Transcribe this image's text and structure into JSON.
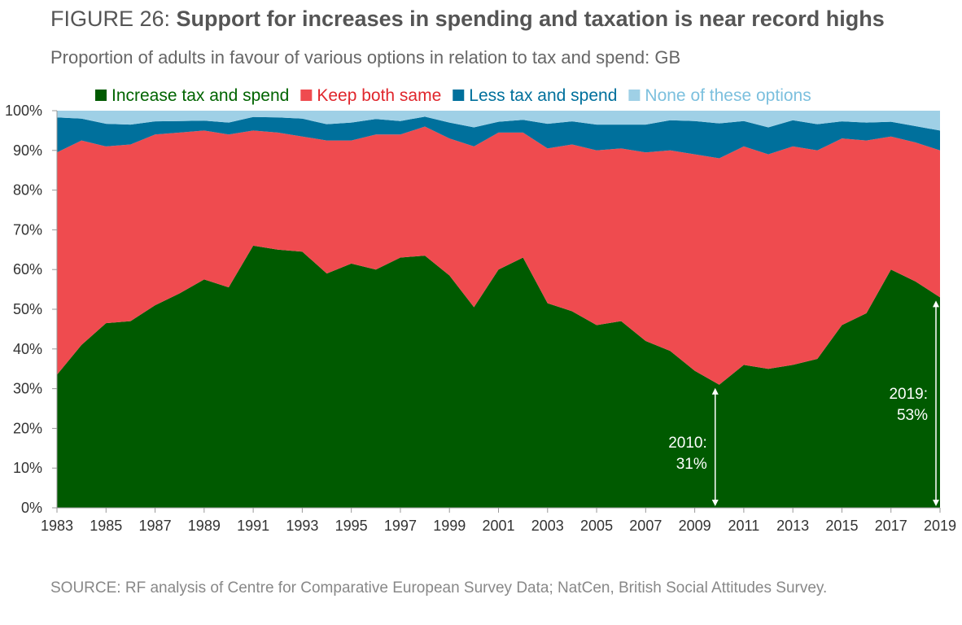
{
  "title_prefix": "FIGURE 26: ",
  "title_bold": "Support for increases in spending and taxation is near record highs",
  "subtitle": "Proportion of adults in favour of various options in relation to tax and spend: GB",
  "source": "SOURCE: RF analysis of Centre for Comparative European Survey Data; NatCen, British Social Attitudes Survey.",
  "chart_data": {
    "type": "area",
    "stacked": true,
    "x": [
      1983,
      1984,
      1985,
      1986,
      1987,
      1988,
      1989,
      1990,
      1991,
      1992,
      1993,
      1994,
      1995,
      1996,
      1997,
      1998,
      1999,
      2000,
      2001,
      2002,
      2003,
      2004,
      2005,
      2006,
      2007,
      2008,
      2009,
      2010,
      2011,
      2012,
      2013,
      2014,
      2015,
      2016,
      2017,
      2018,
      2019
    ],
    "xticks": [
      "1983",
      "1985",
      "1987",
      "1989",
      "1991",
      "1993",
      "1995",
      "1997",
      "1999",
      "2001",
      "2003",
      "2005",
      "2007",
      "2009",
      "2011",
      "2013",
      "2015",
      "2017",
      "2019"
    ],
    "yticks": [
      "0%",
      "10%",
      "20%",
      "30%",
      "40%",
      "50%",
      "60%",
      "70%",
      "80%",
      "90%",
      "100%"
    ],
    "ylim": [
      0,
      100
    ],
    "grid": false,
    "legend_position": "top",
    "series": [
      {
        "name": "Increase tax and spend",
        "color": "#005a00",
        "text_color": "#006400",
        "values": [
          33.5,
          41,
          46.5,
          47,
          51,
          54,
          57.5,
          55.5,
          66,
          65,
          64.5,
          59,
          61.5,
          60,
          63,
          63.5,
          58.5,
          50.5,
          60,
          63,
          51.5,
          49.5,
          46,
          47,
          42,
          39.5,
          34.5,
          31,
          36,
          35,
          36,
          37.5,
          46,
          49,
          60,
          57,
          53
        ]
      },
      {
        "name": "Keep both same",
        "color": "#ef4b4f",
        "text_color": "#e0262c",
        "values": [
          56,
          51.5,
          44.5,
          44.5,
          43,
          40.5,
          37.5,
          38.5,
          29,
          29.5,
          29,
          33.5,
          31,
          34,
          31,
          32.5,
          34.5,
          40.5,
          34.5,
          31.5,
          39,
          42,
          44,
          43.5,
          47.5,
          50.5,
          54.5,
          57,
          55,
          54,
          55,
          52.5,
          47,
          43.5,
          33.5,
          35,
          37
        ]
      },
      {
        "name": "Less tax and spend",
        "color": "#00709c",
        "text_color": "#00709c",
        "values": [
          8.8,
          5.5,
          5.7,
          5,
          3.3,
          2.9,
          2.5,
          3,
          3.4,
          3.8,
          4.5,
          4.1,
          4.5,
          3.9,
          3.4,
          2.5,
          4,
          4.8,
          2.7,
          3.2,
          6.2,
          5.8,
          6.5,
          6,
          7,
          7.6,
          8.4,
          8.8,
          6.4,
          6.8,
          6.6,
          6.6,
          4.3,
          4.5,
          3.7,
          4.1,
          5
        ]
      },
      {
        "name": "None of these options",
        "color": "#9fd0e6",
        "text_color": "#7cc0de",
        "values": [
          1.7,
          2,
          3.3,
          3.5,
          2.7,
          2.6,
          2.5,
          3,
          1.6,
          1.7,
          2,
          3.4,
          3,
          2.1,
          2.6,
          1.5,
          3,
          4.2,
          2.8,
          2.3,
          3.3,
          2.7,
          3.5,
          3.5,
          3.5,
          2.4,
          2.6,
          3.2,
          2.6,
          4.2,
          2.4,
          3.4,
          2.7,
          3,
          2.8,
          3.9,
          5
        ]
      }
    ],
    "annotations": [
      {
        "x": 2010,
        "value": 31,
        "line1": "2010:",
        "line2": "31%"
      },
      {
        "x": 2019,
        "value": 53,
        "line1": "2019:",
        "line2": "53%"
      }
    ]
  }
}
